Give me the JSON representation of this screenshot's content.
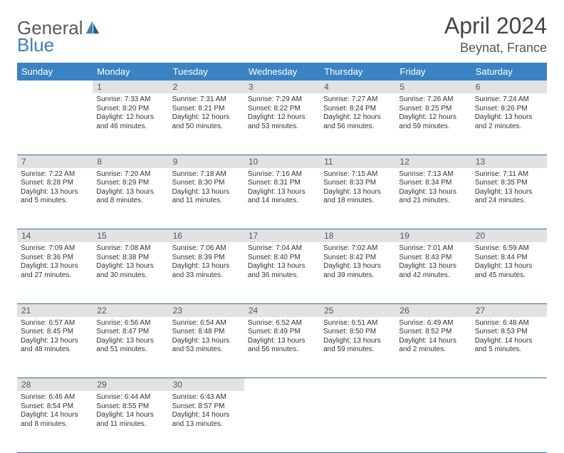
{
  "logo": {
    "part1": "General",
    "part2": "Blue"
  },
  "title": "April 2024",
  "location": "Beynat, France",
  "colors": {
    "header_bg": "#3b82c4",
    "header_text": "#ffffff",
    "daynum_bg": "#e2e2e2",
    "rule": "#2f6ca3",
    "text": "#333333"
  },
  "weekdays": [
    "Sunday",
    "Monday",
    "Tuesday",
    "Wednesday",
    "Thursday",
    "Friday",
    "Saturday"
  ],
  "weeks": [
    [
      null,
      {
        "n": "1",
        "sr": "Sunrise: 7:33 AM",
        "ss": "Sunset: 8:20 PM",
        "d1": "Daylight: 12 hours",
        "d2": "and 46 minutes."
      },
      {
        "n": "2",
        "sr": "Sunrise: 7:31 AM",
        "ss": "Sunset: 8:21 PM",
        "d1": "Daylight: 12 hours",
        "d2": "and 50 minutes."
      },
      {
        "n": "3",
        "sr": "Sunrise: 7:29 AM",
        "ss": "Sunset: 8:22 PM",
        "d1": "Daylight: 12 hours",
        "d2": "and 53 minutes."
      },
      {
        "n": "4",
        "sr": "Sunrise: 7:27 AM",
        "ss": "Sunset: 8:24 PM",
        "d1": "Daylight: 12 hours",
        "d2": "and 56 minutes."
      },
      {
        "n": "5",
        "sr": "Sunrise: 7:26 AM",
        "ss": "Sunset: 8:25 PM",
        "d1": "Daylight: 12 hours",
        "d2": "and 59 minutes."
      },
      {
        "n": "6",
        "sr": "Sunrise: 7:24 AM",
        "ss": "Sunset: 8:26 PM",
        "d1": "Daylight: 13 hours",
        "d2": "and 2 minutes."
      }
    ],
    [
      {
        "n": "7",
        "sr": "Sunrise: 7:22 AM",
        "ss": "Sunset: 8:28 PM",
        "d1": "Daylight: 13 hours",
        "d2": "and 5 minutes."
      },
      {
        "n": "8",
        "sr": "Sunrise: 7:20 AM",
        "ss": "Sunset: 8:29 PM",
        "d1": "Daylight: 13 hours",
        "d2": "and 8 minutes."
      },
      {
        "n": "9",
        "sr": "Sunrise: 7:18 AM",
        "ss": "Sunset: 8:30 PM",
        "d1": "Daylight: 13 hours",
        "d2": "and 11 minutes."
      },
      {
        "n": "10",
        "sr": "Sunrise: 7:16 AM",
        "ss": "Sunset: 8:31 PM",
        "d1": "Daylight: 13 hours",
        "d2": "and 14 minutes."
      },
      {
        "n": "11",
        "sr": "Sunrise: 7:15 AM",
        "ss": "Sunset: 8:33 PM",
        "d1": "Daylight: 13 hours",
        "d2": "and 18 minutes."
      },
      {
        "n": "12",
        "sr": "Sunrise: 7:13 AM",
        "ss": "Sunset: 8:34 PM",
        "d1": "Daylight: 13 hours",
        "d2": "and 21 minutes."
      },
      {
        "n": "13",
        "sr": "Sunrise: 7:11 AM",
        "ss": "Sunset: 8:35 PM",
        "d1": "Daylight: 13 hours",
        "d2": "and 24 minutes."
      }
    ],
    [
      {
        "n": "14",
        "sr": "Sunrise: 7:09 AM",
        "ss": "Sunset: 8:36 PM",
        "d1": "Daylight: 13 hours",
        "d2": "and 27 minutes."
      },
      {
        "n": "15",
        "sr": "Sunrise: 7:08 AM",
        "ss": "Sunset: 8:38 PM",
        "d1": "Daylight: 13 hours",
        "d2": "and 30 minutes."
      },
      {
        "n": "16",
        "sr": "Sunrise: 7:06 AM",
        "ss": "Sunset: 8:39 PM",
        "d1": "Daylight: 13 hours",
        "d2": "and 33 minutes."
      },
      {
        "n": "17",
        "sr": "Sunrise: 7:04 AM",
        "ss": "Sunset: 8:40 PM",
        "d1": "Daylight: 13 hours",
        "d2": "and 36 minutes."
      },
      {
        "n": "18",
        "sr": "Sunrise: 7:02 AM",
        "ss": "Sunset: 8:42 PM",
        "d1": "Daylight: 13 hours",
        "d2": "and 39 minutes."
      },
      {
        "n": "19",
        "sr": "Sunrise: 7:01 AM",
        "ss": "Sunset: 8:43 PM",
        "d1": "Daylight: 13 hours",
        "d2": "and 42 minutes."
      },
      {
        "n": "20",
        "sr": "Sunrise: 6:59 AM",
        "ss": "Sunset: 8:44 PM",
        "d1": "Daylight: 13 hours",
        "d2": "and 45 minutes."
      }
    ],
    [
      {
        "n": "21",
        "sr": "Sunrise: 6:57 AM",
        "ss": "Sunset: 8:45 PM",
        "d1": "Daylight: 13 hours",
        "d2": "and 48 minutes."
      },
      {
        "n": "22",
        "sr": "Sunrise: 6:56 AM",
        "ss": "Sunset: 8:47 PM",
        "d1": "Daylight: 13 hours",
        "d2": "and 51 minutes."
      },
      {
        "n": "23",
        "sr": "Sunrise: 6:54 AM",
        "ss": "Sunset: 8:48 PM",
        "d1": "Daylight: 13 hours",
        "d2": "and 53 minutes."
      },
      {
        "n": "24",
        "sr": "Sunrise: 6:52 AM",
        "ss": "Sunset: 8:49 PM",
        "d1": "Daylight: 13 hours",
        "d2": "and 56 minutes."
      },
      {
        "n": "25",
        "sr": "Sunrise: 6:51 AM",
        "ss": "Sunset: 8:50 PM",
        "d1": "Daylight: 13 hours",
        "d2": "and 59 minutes."
      },
      {
        "n": "26",
        "sr": "Sunrise: 6:49 AM",
        "ss": "Sunset: 8:52 PM",
        "d1": "Daylight: 14 hours",
        "d2": "and 2 minutes."
      },
      {
        "n": "27",
        "sr": "Sunrise: 6:48 AM",
        "ss": "Sunset: 8:53 PM",
        "d1": "Daylight: 14 hours",
        "d2": "and 5 minutes."
      }
    ],
    [
      {
        "n": "28",
        "sr": "Sunrise: 6:46 AM",
        "ss": "Sunset: 8:54 PM",
        "d1": "Daylight: 14 hours",
        "d2": "and 8 minutes."
      },
      {
        "n": "29",
        "sr": "Sunrise: 6:44 AM",
        "ss": "Sunset: 8:55 PM",
        "d1": "Daylight: 14 hours",
        "d2": "and 11 minutes."
      },
      {
        "n": "30",
        "sr": "Sunrise: 6:43 AM",
        "ss": "Sunset: 8:57 PM",
        "d1": "Daylight: 14 hours",
        "d2": "and 13 minutes."
      },
      null,
      null,
      null,
      null
    ]
  ]
}
